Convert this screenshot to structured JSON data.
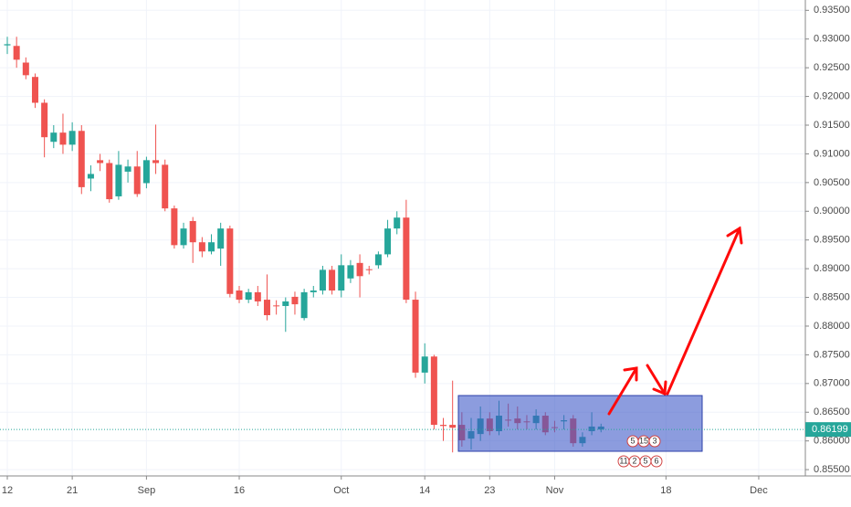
{
  "chart_data": {
    "type": "candlestick",
    "up_color": "#26a69a",
    "down_color": "#ef5350",
    "grid": true,
    "categories": [
      "12",
      null,
      null,
      null,
      null,
      null,
      null,
      "21",
      null,
      null,
      null,
      null,
      null,
      null,
      null,
      "Sep",
      null,
      null,
      null,
      null,
      null,
      null,
      null,
      null,
      null,
      "16",
      null,
      null,
      null,
      null,
      null,
      null,
      null,
      null,
      null,
      null,
      "Oct",
      null,
      null,
      null,
      null,
      null,
      null,
      null,
      null,
      "14",
      null,
      null,
      null,
      null,
      null,
      null,
      "23",
      null,
      null,
      null,
      null,
      null,
      null,
      "Nov",
      null,
      null,
      null,
      null,
      null,
      null,
      null,
      null,
      null,
      null,
      null,
      "18",
      null,
      null,
      null,
      null,
      null,
      null,
      null,
      null,
      null,
      "Dec",
      null,
      null,
      null,
      null
    ],
    "open": [
      0.9289,
      0.9288,
      0.9259,
      0.9234,
      0.9189,
      0.9121,
      0.9137,
      0.9116,
      0.914,
      0.9057,
      0.9089,
      0.9084,
      0.9026,
      0.9069,
      0.9078,
      0.9049,
      0.9089,
      0.9081,
      0.9005,
      0.8941,
      0.8983,
      0.8946,
      0.893,
      0.8935,
      0.897,
      0.8862,
      0.8846,
      0.8859,
      0.8846,
      0.8836,
      0.8835,
      0.8851,
      0.8814,
      0.8859,
      0.8862,
      0.8898,
      0.8862,
      0.8883,
      0.891,
      0.8899,
      0.8906,
      0.8925,
      0.897,
      0.8989,
      0.8846,
      0.8719,
      0.8747,
      0.8628,
      0.8628,
      0.8628,
      0.8604,
      0.8612,
      0.8639,
      0.8617,
      0.8637,
      0.8639,
      0.8634,
      0.8631,
      0.8644,
      0.8624,
      0.8634,
      0.8639,
      0.8596,
      0.8617,
      0.862,
      null,
      null,
      null,
      null,
      null,
      null,
      null,
      null,
      null,
      null,
      null,
      null,
      null,
      null,
      null,
      null,
      null,
      null,
      null,
      null,
      null
    ],
    "high": [
      0.9304,
      0.9304,
      0.9268,
      0.924,
      0.9195,
      0.915,
      0.917,
      0.9155,
      0.915,
      0.908,
      0.91,
      0.909,
      0.9105,
      0.909,
      0.9105,
      0.9095,
      0.9151,
      0.909,
      0.901,
      0.898,
      0.899,
      0.8955,
      0.896,
      0.898,
      0.8975,
      0.887,
      0.8865,
      0.887,
      0.889,
      0.8845,
      0.885,
      0.886,
      0.8865,
      0.887,
      0.8905,
      0.8905,
      0.8925,
      0.8915,
      0.8925,
      0.8905,
      0.893,
      0.8985,
      0.9,
      0.902,
      0.886,
      0.877,
      0.875,
      0.864,
      0.8705,
      0.865,
      0.864,
      0.866,
      0.865,
      0.867,
      0.8665,
      0.866,
      0.8645,
      0.8655,
      0.865,
      0.8635,
      0.8645,
      0.8645,
      0.8615,
      0.865,
      0.863,
      null,
      null,
      null,
      null,
      null,
      null,
      null,
      null,
      null,
      null,
      null,
      null,
      null,
      null,
      null,
      null,
      null,
      null,
      null,
      null,
      null
    ],
    "low": [
      0.9274,
      0.925,
      0.923,
      0.918,
      0.9094,
      0.911,
      0.91,
      0.9105,
      0.903,
      0.9035,
      0.907,
      0.9015,
      0.902,
      0.905,
      0.9025,
      0.904,
      0.9065,
      0.9,
      0.8935,
      0.8935,
      0.891,
      0.892,
      0.8925,
      0.8905,
      0.885,
      0.884,
      0.884,
      0.8835,
      0.881,
      0.882,
      0.879,
      0.882,
      0.881,
      0.885,
      0.8855,
      0.8855,
      0.885,
      0.8875,
      0.885,
      0.889,
      0.89,
      0.892,
      0.896,
      0.884,
      0.871,
      0.87,
      0.862,
      0.86,
      0.858,
      0.859,
      0.8585,
      0.86,
      0.861,
      0.861,
      0.8625,
      0.862,
      0.862,
      0.862,
      0.861,
      0.8615,
      0.862,
      0.859,
      0.859,
      0.861,
      0.8615,
      null,
      null,
      null,
      null,
      null,
      null,
      null,
      null,
      null,
      null,
      null,
      null,
      null,
      null,
      null,
      null,
      null,
      null,
      null,
      null,
      null
    ],
    "close": [
      0.9291,
      0.9264,
      0.9237,
      0.9189,
      0.9129,
      0.9137,
      0.9116,
      0.914,
      0.9042,
      0.9065,
      0.9084,
      0.9021,
      0.9081,
      0.9078,
      0.903,
      0.9089,
      0.9084,
      0.9005,
      0.8941,
      0.897,
      0.8946,
      0.893,
      0.8946,
      0.897,
      0.8856,
      0.8846,
      0.8859,
      0.8843,
      0.8819,
      0.8835,
      0.8843,
      0.8838,
      0.8859,
      0.8862,
      0.8898,
      0.8862,
      0.8906,
      0.8906,
      0.8887,
      0.8898,
      0.8925,
      0.897,
      0.8989,
      0.8846,
      0.8719,
      0.8747,
      0.8628,
      0.8626,
      0.8623,
      0.8601,
      0.8617,
      0.8639,
      0.8617,
      0.8644,
      0.8636,
      0.8631,
      0.8633,
      0.8644,
      0.8615,
      0.8623,
      0.8636,
      0.8596,
      0.8607,
      0.8625,
      0.8625,
      null,
      null,
      null,
      null,
      null,
      null,
      null,
      null,
      null,
      null,
      null,
      null,
      null,
      null,
      null,
      null,
      null,
      null,
      null,
      null,
      null
    ],
    "ylim": [
      0.8539,
      0.9368
    ],
    "yticks": [
      {
        "value": 0.855,
        "label": "0.85500"
      },
      {
        "value": 0.86,
        "label": "0.86000"
      },
      {
        "value": 0.865,
        "label": "0.86500"
      },
      {
        "value": 0.87,
        "label": "0.87000"
      },
      {
        "value": 0.875,
        "label": "0.87500"
      },
      {
        "value": 0.88,
        "label": "0.88000"
      },
      {
        "value": 0.885,
        "label": "0.88500"
      },
      {
        "value": 0.89,
        "label": "0.89000"
      },
      {
        "value": 0.895,
        "label": "0.89500"
      },
      {
        "value": 0.9,
        "label": "0.90000"
      },
      {
        "value": 0.905,
        "label": "0.90500"
      },
      {
        "value": 0.91,
        "label": "0.91000"
      },
      {
        "value": 0.915,
        "label": "0.91500"
      },
      {
        "value": 0.92,
        "label": "0.92000"
      },
      {
        "value": 0.925,
        "label": "0.92500"
      },
      {
        "value": 0.93,
        "label": "0.93000"
      },
      {
        "value": 0.935,
        "label": "0.93500"
      }
    ],
    "last_price": {
      "value": 0.86199,
      "label": "0.86199"
    },
    "event_badges": [
      [
        5,
        15,
        3
      ],
      [
        11,
        2,
        5,
        6
      ]
    ]
  }
}
